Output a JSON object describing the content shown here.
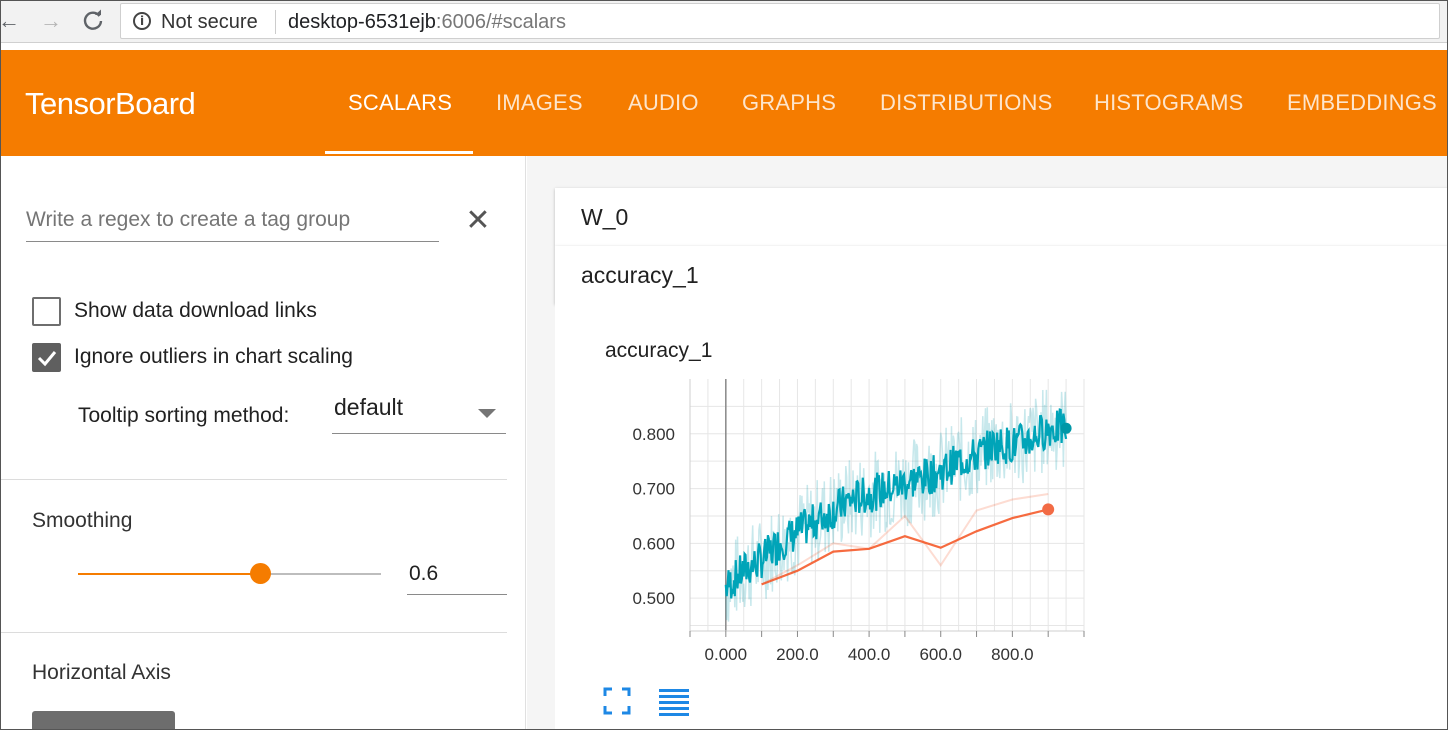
{
  "browser": {
    "back_icon": "arrow-left-icon",
    "forward_icon": "arrow-right-icon",
    "reload_icon": "reload-icon",
    "security_label": "Not secure",
    "url_host": "desktop-6531ejb",
    "url_rest": ":6006/#scalars"
  },
  "header": {
    "title": "TensorBoard",
    "tabs": [
      {
        "label": "SCALARS",
        "active": true
      },
      {
        "label": "IMAGES",
        "active": false
      },
      {
        "label": "AUDIO",
        "active": false
      },
      {
        "label": "GRAPHS",
        "active": false
      },
      {
        "label": "DISTRIBUTIONS",
        "active": false
      },
      {
        "label": "HISTOGRAMS",
        "active": false
      },
      {
        "label": "EMBEDDINGS",
        "active": false
      }
    ],
    "color": "#f57c00"
  },
  "sidebar": {
    "regex_placeholder": "Write a regex to create a tag group",
    "clear_icon": "close-icon",
    "show_download_links": {
      "label": "Show data download links",
      "checked": false
    },
    "ignore_outliers": {
      "label": "Ignore outliers in chart scaling",
      "checked": true
    },
    "tooltip_sorting": {
      "label": "Tooltip sorting method:",
      "value": "default"
    },
    "smoothing": {
      "title": "Smoothing",
      "value": "0.6",
      "fraction": 0.6
    },
    "horizontal_axis": {
      "title": "Horizontal Axis"
    }
  },
  "main": {
    "groups": [
      {
        "title": "W_0"
      },
      {
        "title": "accuracy_1"
      }
    ],
    "chart": {
      "title": "accuracy_1",
      "expand_icon": "fullscreen-icon",
      "data_icon": "data-table-icon"
    }
  },
  "chart_data": {
    "type": "line",
    "title": "accuracy_1",
    "xlim": [
      -100,
      1000
    ],
    "ylim": [
      0.44,
      0.9
    ],
    "x_ticks": [
      "0.000",
      "200.0",
      "400.0",
      "600.0",
      "800.0"
    ],
    "x_tick_values": [
      0,
      200,
      400,
      600,
      800
    ],
    "y_ticks": [
      "0.500",
      "0.600",
      "0.700",
      "0.800"
    ],
    "y_tick_values": [
      0.5,
      0.6,
      0.7,
      0.8
    ],
    "grid": true,
    "series": [
      {
        "color": "#0097a7",
        "smoothed": [
          [
            0,
            0.52
          ],
          [
            50,
            0.55
          ],
          [
            100,
            0.57
          ],
          [
            150,
            0.6
          ],
          [
            200,
            0.62
          ],
          [
            250,
            0.64
          ],
          [
            300,
            0.66
          ],
          [
            350,
            0.68
          ],
          [
            400,
            0.69
          ],
          [
            450,
            0.7
          ],
          [
            500,
            0.71
          ],
          [
            550,
            0.72
          ],
          [
            600,
            0.73
          ],
          [
            650,
            0.75
          ],
          [
            700,
            0.76
          ],
          [
            750,
            0.78
          ],
          [
            800,
            0.78
          ],
          [
            850,
            0.79
          ],
          [
            900,
            0.81
          ],
          [
            950,
            0.81
          ]
        ],
        "last_point": [
          950,
          0.81
        ]
      },
      {
        "color": "#f4511e",
        "smoothed": [
          [
            100,
            0.525
          ],
          [
            200,
            0.55
          ],
          [
            300,
            0.585
          ],
          [
            400,
            0.59
          ],
          [
            500,
            0.613
          ],
          [
            600,
            0.592
          ],
          [
            700,
            0.622
          ],
          [
            800,
            0.646
          ],
          [
            900,
            0.662
          ]
        ],
        "raw": [
          [
            100,
            0.525
          ],
          [
            200,
            0.56
          ],
          [
            300,
            0.6
          ],
          [
            400,
            0.59
          ],
          [
            500,
            0.65
          ],
          [
            600,
            0.56
          ],
          [
            700,
            0.66
          ],
          [
            800,
            0.68
          ],
          [
            900,
            0.69
          ]
        ],
        "last_point": [
          900,
          0.662
        ]
      }
    ]
  }
}
